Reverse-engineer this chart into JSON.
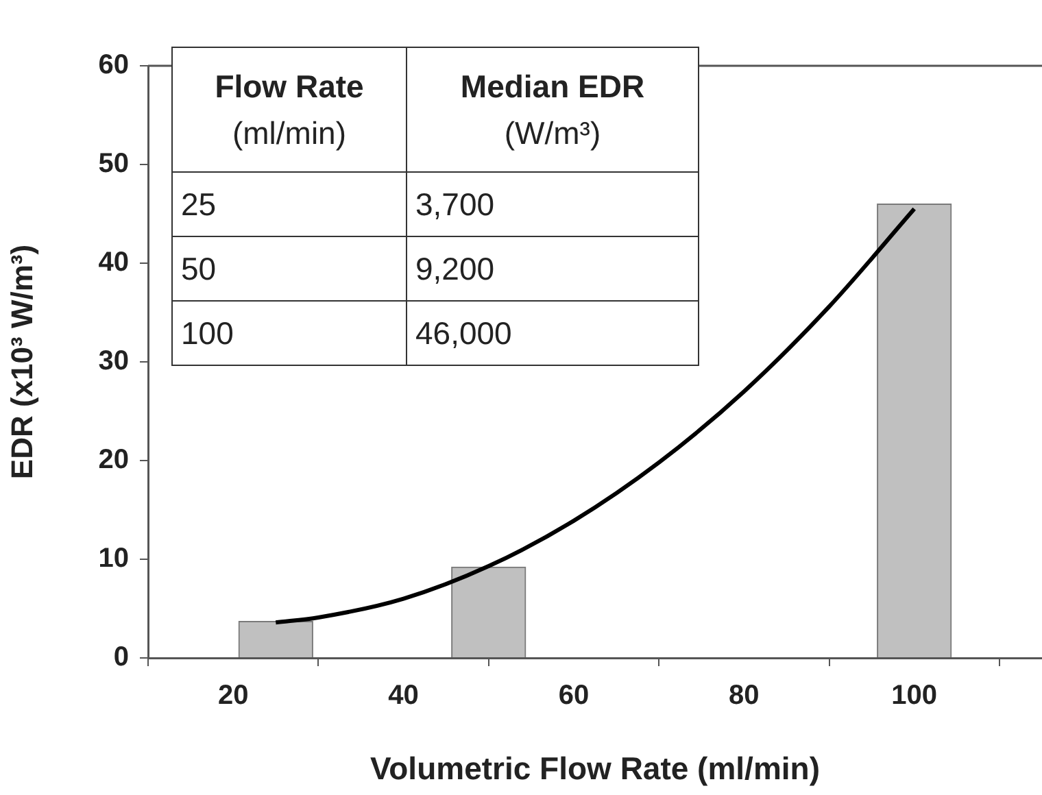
{
  "chart_data": {
    "type": "bar",
    "xlabel": "Volumetric Flow Rate (ml/min)",
    "ylabel": "EDR (x10³ W/m³)",
    "x": [
      25,
      50,
      100
    ],
    "series": [
      {
        "color": "#c0c0c0",
        "values": [
          3.7,
          9.2,
          46
        ]
      },
      {
        "type": "line",
        "color": "#000000",
        "x": [
          25,
          30,
          40,
          50,
          60,
          70,
          80,
          90,
          100
        ],
        "values": [
          3.6,
          4.1,
          6.0,
          9.3,
          13.9,
          19.8,
          27.0,
          35.6,
          45.5
        ]
      }
    ],
    "annotations": [
      "Flow Rate",
      "(ml/min)",
      "Median EDR",
      "(W/m³)",
      "25",
      "3,700",
      "50",
      "9,200",
      "100",
      "46,000"
    ],
    "xlim": [
      10,
      115
    ],
    "xticks": [
      20,
      40,
      60,
      80,
      100
    ],
    "ylim": [
      0,
      60
    ],
    "yticks": [
      0,
      10,
      20,
      30,
      40,
      50,
      60
    ],
    "grid": false,
    "legend": false,
    "marker": "none",
    "line_style": "solid"
  }
}
